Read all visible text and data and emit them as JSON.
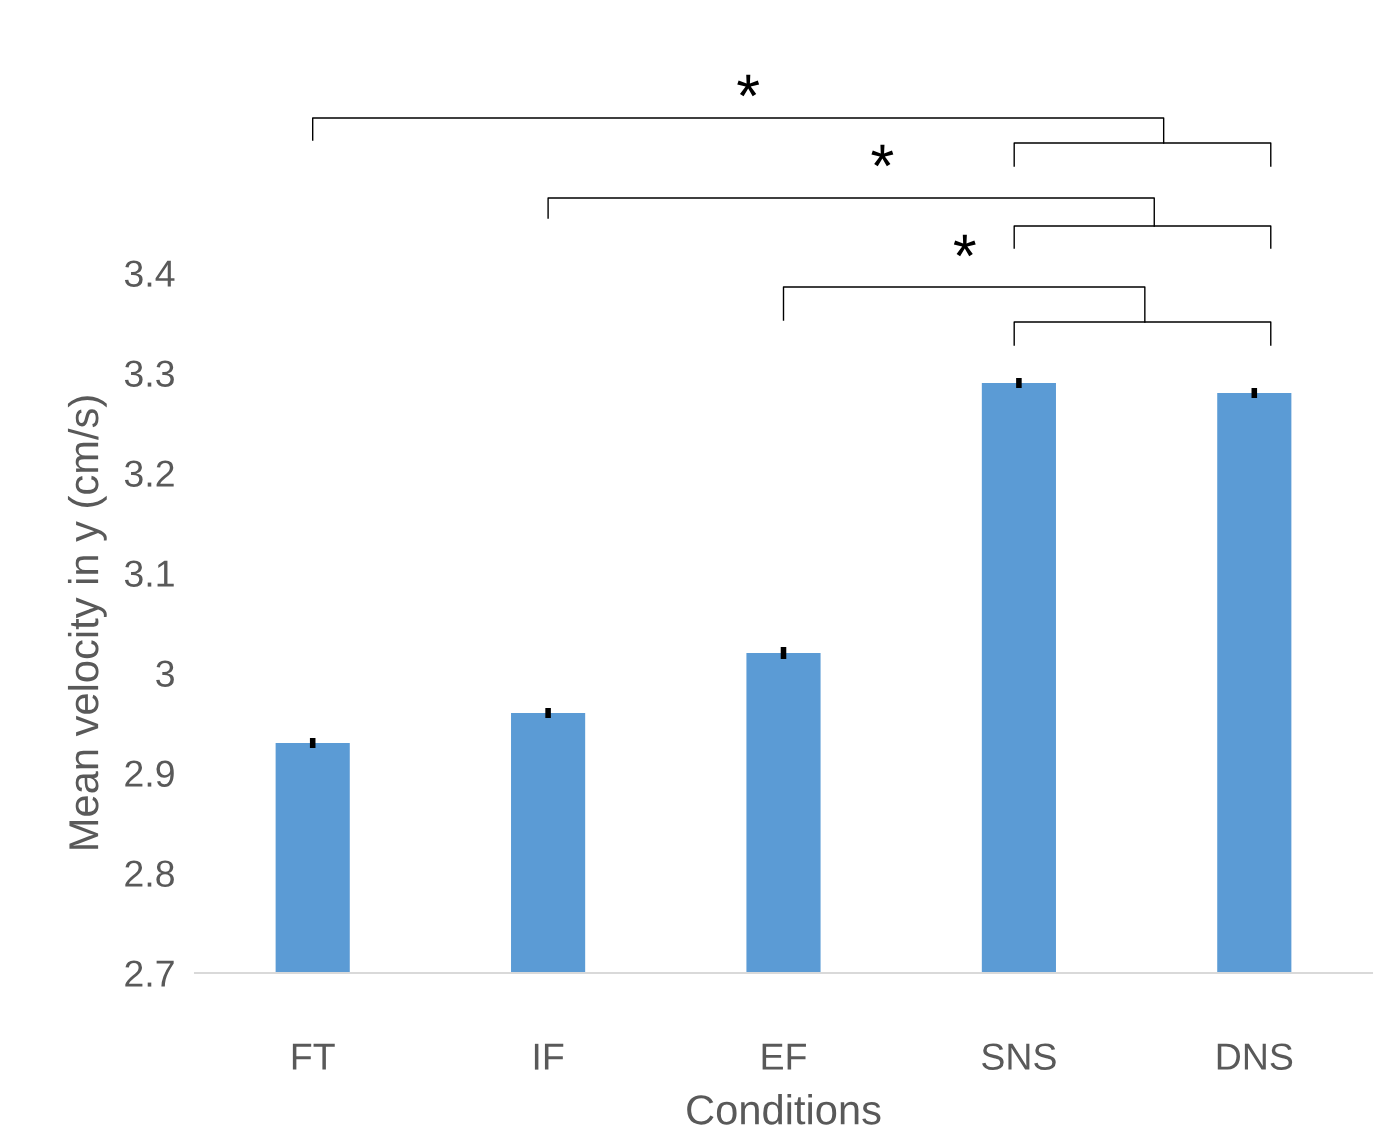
{
  "chart_data": {
    "type": "bar",
    "xlabel": "Conditions",
    "ylabel": "Mean velocity in y (cm/s)",
    "categories": [
      "FT",
      "IF",
      "EF",
      "SNS",
      "DNS"
    ],
    "values": [
      2.93,
      2.96,
      3.02,
      3.29,
      3.28
    ],
    "errors": [
      0.005,
      0.005,
      0.006,
      0.005,
      0.005
    ],
    "color": "#5b9bd5",
    "ylim": [
      2.7,
      3.4
    ],
    "yticks": [
      2.7,
      2.8,
      2.9,
      3,
      3.1,
      3.2,
      3.3,
      3.4
    ],
    "grid": false,
    "legend": false,
    "annotations": [
      "*",
      "*",
      "*"
    ]
  }
}
